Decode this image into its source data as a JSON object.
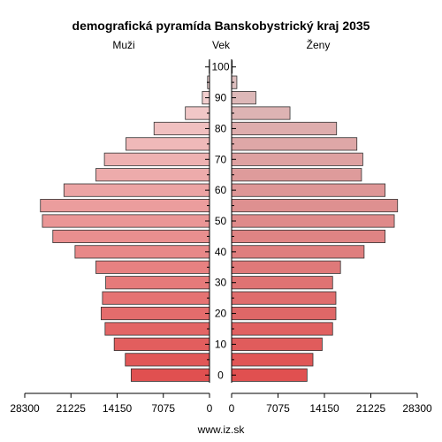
{
  "chart_data": {
    "type": "bar",
    "title": "demografická pyramída Banskobystrický kraj 2035",
    "left_label": "Muži",
    "center_label": "Vek",
    "right_label": "Ženy",
    "footer": "www.iz.sk",
    "age_groups": [
      0,
      5,
      10,
      15,
      20,
      25,
      30,
      35,
      40,
      45,
      50,
      55,
      60,
      65,
      70,
      75,
      80,
      85,
      90,
      95,
      100
    ],
    "age_tick_labels": [
      "0",
      "10",
      "20",
      "30",
      "40",
      "50",
      "60",
      "70",
      "80",
      "90",
      "100"
    ],
    "male_tick_labels": [
      "28300",
      "21225",
      "14150",
      "7075",
      "0"
    ],
    "female_tick_labels": [
      "0",
      "7075",
      "14150",
      "21225",
      "28300"
    ],
    "xlim": [
      0,
      28300
    ],
    "series": [
      {
        "name": "Muži",
        "values": [
          12000,
          12900,
          14600,
          16000,
          16600,
          16400,
          15900,
          17400,
          20600,
          24000,
          25600,
          25900,
          22300,
          17400,
          16100,
          12800,
          8500,
          3700,
          1100,
          300,
          50
        ]
      },
      {
        "name": "Ženy",
        "values": [
          11500,
          12400,
          13800,
          15400,
          15900,
          15900,
          15400,
          16600,
          20200,
          23400,
          24800,
          25300,
          23400,
          19800,
          20000,
          19100,
          16000,
          8900,
          3700,
          800,
          100
        ]
      }
    ],
    "colors": {
      "young": "#e05050",
      "old": "#f0d4d4",
      "male_old": "#f4dcdc",
      "female_old": "#ddc4c4"
    }
  }
}
